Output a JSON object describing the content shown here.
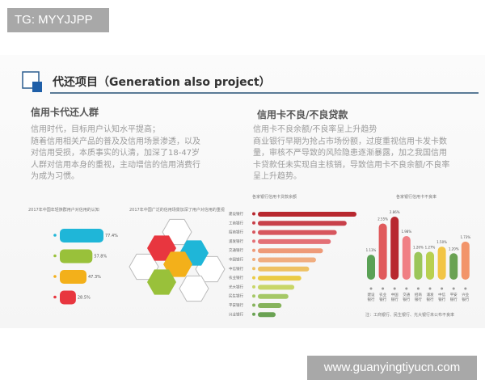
{
  "watermark_top": "TG: MYYJJPP",
  "watermark_bottom": "www.guanyingtiyucn.com",
  "title": "代还项目（Generation also project）",
  "left": {
    "heading": "信用卡代还人群",
    "body": "信用时代，目标用户认知水平提高；\n随着信用相关产品的普及及信用场景渗透，以及\n对信用受损，本质事实的认清，加深了18-47岁\n人群对信用本身的重视，主动增信的信用消费行\n为成为习惯。"
  },
  "right": {
    "heading": "信用卡不良/不良贷款",
    "body": "信用卡不良余额/不良率呈上升趋势\n商业银行早期为抢占市场份额，过度重视信用卡发卡数\n量，审核不严导致的风险隐患逐渐暴露，加之我国信用\n卡贷款任未实现自主核销，导致信用卡不良余额/不良率\n呈上升趋势。"
  },
  "colors": {
    "accent": "#1f5fa8",
    "title_line": "#5a7a96"
  },
  "chart_data": [
    {
      "type": "bar",
      "orientation": "horizontal",
      "title": "2017年中国年轻族群用户对信用的认知",
      "values": [
        77.4,
        57.8,
        47.3,
        28.5
      ],
      "labels": [
        "77.4%",
        "57.8%",
        "47.3%",
        "28.5%"
      ],
      "colors": [
        "#1fb6d8",
        "#99c13a",
        "#f3b01a",
        "#e8363f"
      ]
    },
    {
      "type": "diagram",
      "title": "2017年中国广泛的信用场景加深了用户对信用的重视",
      "icons": [
        "currency-cycle-icon",
        "document-icon",
        "edit-icon",
        "globe-icon"
      ],
      "colors": [
        "#e8363f",
        "#1fb6d8",
        "#f3b01a",
        "#99c13a"
      ]
    },
    {
      "type": "bar",
      "orientation": "horizontal",
      "title": "各家银行信用卡贷款余额",
      "categories": [
        "建设银行",
        "工商银行",
        "招商银行",
        "浦发银行",
        "交通银行",
        "中国银行",
        "中信银行",
        "农业银行",
        "光大银行",
        "民生银行",
        "平安银行",
        "兴业银行"
      ],
      "values": [
        100,
        90,
        80,
        74,
        66,
        59,
        52,
        44,
        37,
        31,
        24,
        18
      ],
      "colors": [
        "#b8282f",
        "#c8404a",
        "#d7565e",
        "#e37076",
        "#ee9a78",
        "#f0ad80",
        "#eec163",
        "#eacb45",
        "#c8d668",
        "#a5c866",
        "#86b35c",
        "#6aa253"
      ]
    },
    {
      "type": "bar",
      "title": "各家银行信用卡不良率",
      "categories": [
        "建设银行",
        "农业银行",
        "中国银行",
        "交通银行",
        "招商银行",
        "浦发银行",
        "中信银行",
        "平安银行",
        "兴业银行"
      ],
      "values": [
        1.13,
        2.55,
        2.86,
        1.98,
        1.26,
        1.27,
        1.5,
        1.2,
        1.73
      ],
      "labels": [
        "1.13%",
        "2.55%",
        "2.86%",
        "1.98%",
        "1.26%",
        "1.27%",
        "1.50%",
        "1.20%",
        "1.73%"
      ],
      "colors": [
        "#5aa155",
        "#e05a5c",
        "#b8282f",
        "#f07f84",
        "#9bc65a",
        "#b8d050",
        "#f2c545",
        "#6aa253",
        "#f2946a"
      ],
      "note": "注：工商银行、民生银行、光大银行未公布不良率"
    }
  ]
}
